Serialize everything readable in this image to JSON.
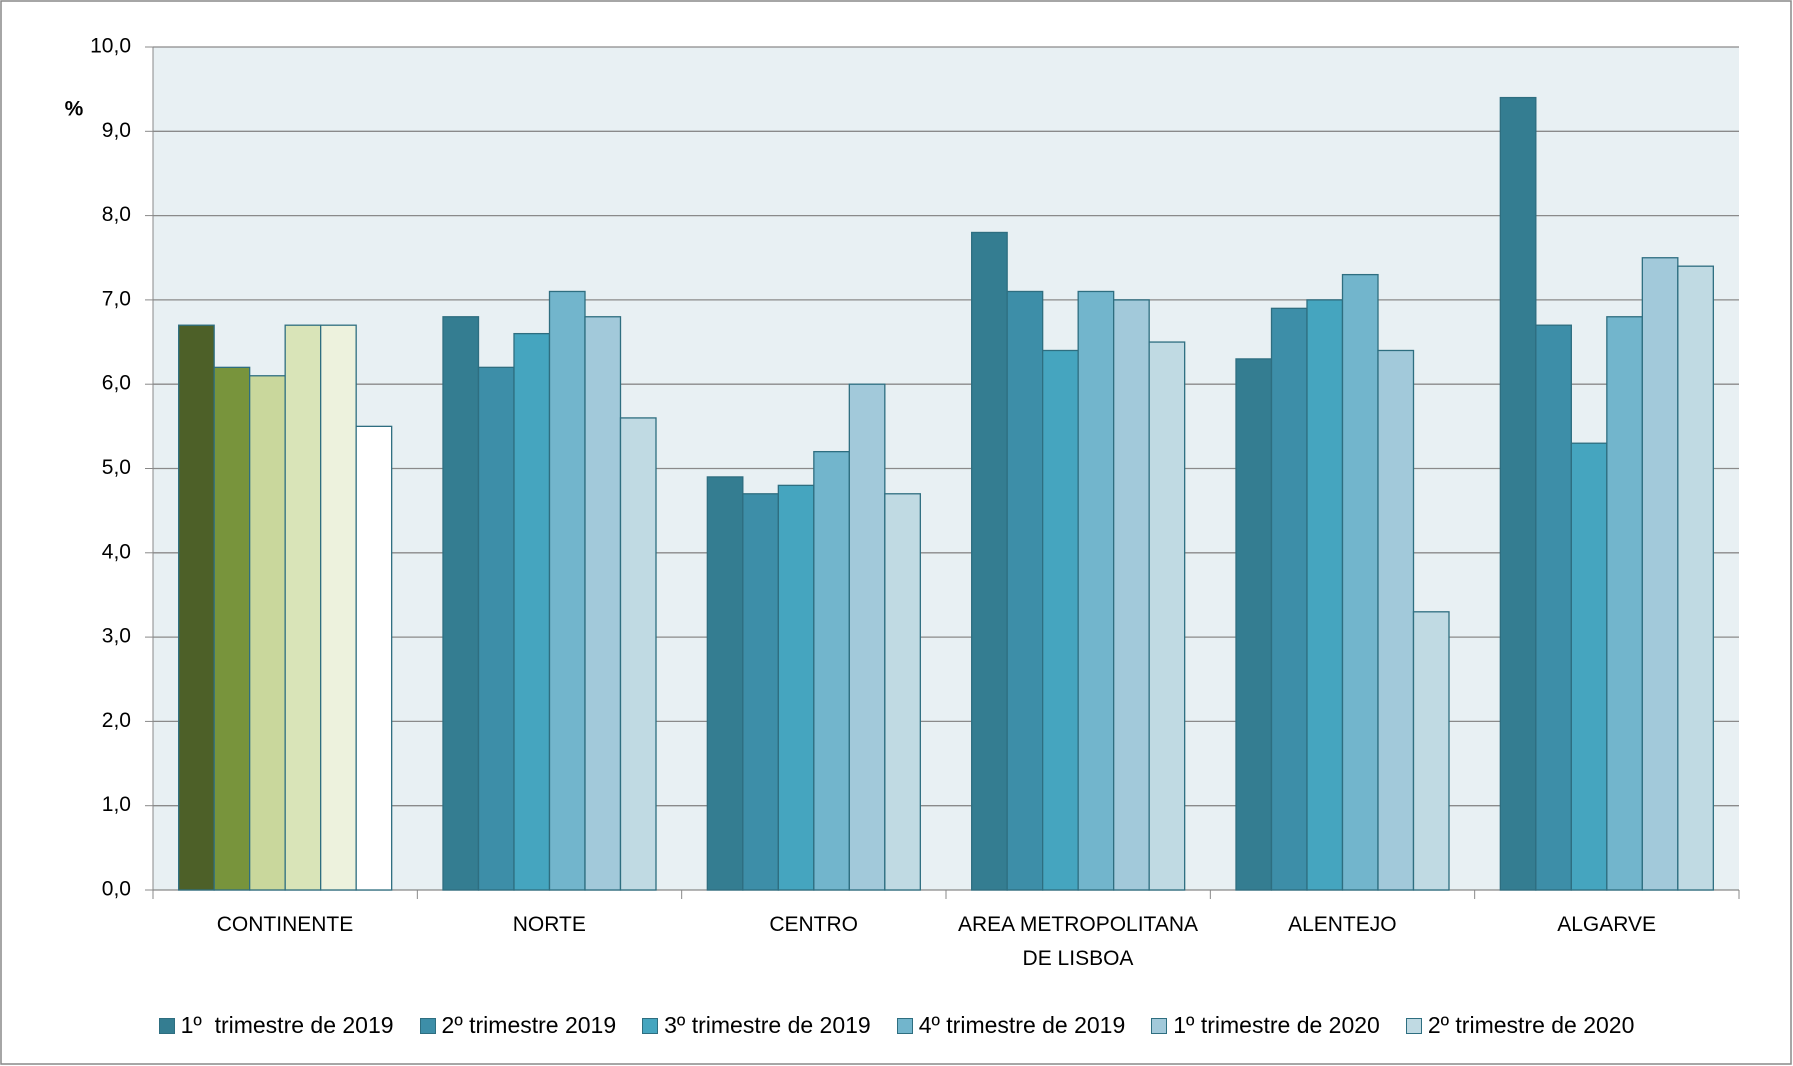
{
  "chart_data": {
    "type": "bar",
    "y_label": "%",
    "categories": [
      "CONTINENTE",
      "NORTE",
      "CENTRO",
      "AREA METROPOLITANA DE LISBOA",
      "ALENTEJO",
      "ALGARVE"
    ],
    "series": [
      {
        "name": "1º  trimestre de 2019",
        "color": "#347d91",
        "first_category_color": "#4d6028",
        "values": [
          6.7,
          6.8,
          4.9,
          7.8,
          6.3,
          9.4
        ]
      },
      {
        "name": "2º trimestre 2019",
        "color": "#3d8ea8",
        "first_category_color": "#78943c",
        "values": [
          6.2,
          6.2,
          4.7,
          7.1,
          6.9,
          6.7
        ]
      },
      {
        "name": "3º trimestre de 2019",
        "color": "#45a5bf",
        "first_category_color": "#c9d79c",
        "values": [
          6.1,
          6.6,
          4.8,
          6.4,
          7.0,
          5.3
        ]
      },
      {
        "name": "4º trimestre de 2019",
        "color": "#72b5cc",
        "first_category_color": "#d9e4b8",
        "values": [
          6.7,
          7.1,
          5.2,
          7.1,
          7.3,
          6.8
        ]
      },
      {
        "name": "1º trimestre de 2020",
        "color": "#a2c9da",
        "first_category_color": "#edf2dd",
        "values": [
          6.7,
          6.8,
          6.0,
          7.0,
          6.4,
          7.5
        ]
      },
      {
        "name": "2º trimestre de 2020",
        "color": "#c0dae3",
        "first_category_color": "#ffffff",
        "values": [
          5.5,
          5.6,
          4.7,
          6.5,
          3.3,
          7.4
        ]
      }
    ],
    "ylim": [
      0,
      10
    ],
    "yticks": [
      {
        "value": 0,
        "label": "0,0"
      },
      {
        "value": 1,
        "label": "1,0"
      },
      {
        "value": 2,
        "label": "2,0"
      },
      {
        "value": 3,
        "label": "3,0"
      },
      {
        "value": 4,
        "label": "4,0"
      },
      {
        "value": 5,
        "label": "5,0"
      },
      {
        "value": 6,
        "label": "6,0"
      },
      {
        "value": 7,
        "label": "7,0"
      },
      {
        "value": 8,
        "label": "8,0"
      },
      {
        "value": 9,
        "label": "9,0"
      },
      {
        "value": 10,
        "label": "10,0"
      }
    ],
    "grid": true,
    "legend": "bottom"
  }
}
